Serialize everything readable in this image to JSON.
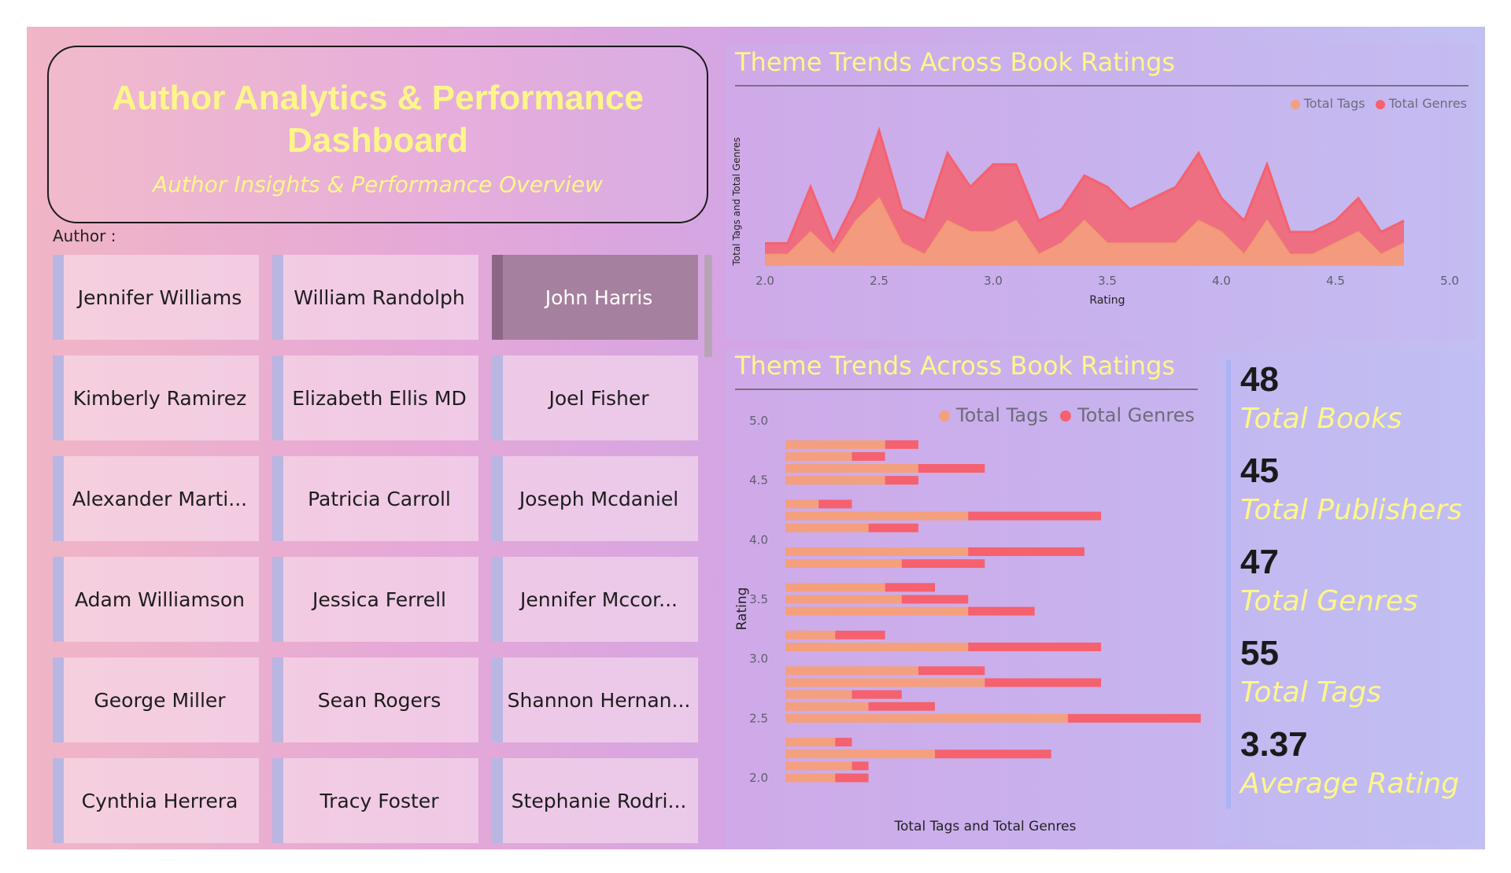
{
  "header": {
    "title": "Author Analytics & Performance Dashboard",
    "subtitle": "Author Insights & Performance Overview"
  },
  "slicer": {
    "label": "Author :",
    "authors": [
      "Jennifer Williams",
      "William Randolph",
      "John Harris",
      "Kimberly Ramirez",
      "Elizabeth Ellis MD",
      "Joel Fisher",
      "Alexander Marti...",
      "Patricia Carroll",
      "Joseph Mcdaniel",
      "Adam Williamson",
      "Jessica Ferrell",
      "Jennifer Mccor...",
      "George Miller",
      "Sean Rogers",
      "Shannon Hernan...",
      "Cynthia Herrera",
      "Tracy Foster",
      "Stephanie Rodri..."
    ],
    "selected": "John Harris"
  },
  "area_panel": {
    "title": "Theme Trends Across Book Ratings",
    "legend": [
      "Total Tags",
      "Total Genres"
    ]
  },
  "bar_panel": {
    "title": "Theme Trends Across Book Ratings",
    "legend": [
      "Total Tags",
      "Total Genres"
    ]
  },
  "colors": {
    "tags": "#f4a07e",
    "genres": "#f5616e",
    "title_yellow": "#fff68a"
  },
  "kpis": [
    {
      "value": "48",
      "label": "Total Books"
    },
    {
      "value": "45",
      "label": "Total Publishers"
    },
    {
      "value": "47",
      "label": "Total Genres"
    },
    {
      "value": "55",
      "label": "Total Tags"
    },
    {
      "value": "3.37",
      "label": "Average Rating"
    }
  ],
  "chart_data": [
    {
      "type": "area",
      "title": "Theme Trends Across Book Ratings",
      "xlabel": "Rating",
      "ylabel": "Total Tags and Total Genres",
      "xlim": [
        2.0,
        5.0
      ],
      "xticks": [
        "2.0",
        "2.5",
        "3.0",
        "3.5",
        "4.0",
        "4.5",
        "5.0"
      ],
      "legend_position": "top-right",
      "stacked": true,
      "x": [
        2.0,
        2.1,
        2.2,
        2.3,
        2.4,
        2.5,
        2.6,
        2.7,
        2.8,
        2.9,
        3.0,
        3.1,
        3.2,
        3.3,
        3.4,
        3.5,
        3.6,
        3.7,
        3.8,
        3.9,
        4.0,
        4.1,
        4.2,
        4.3,
        4.4,
        4.5,
        4.6,
        4.7,
        4.8
      ],
      "series": [
        {
          "name": "Total Tags",
          "values": [
            1,
            1,
            3,
            1,
            4,
            6,
            2,
            1,
            4,
            3,
            3,
            4,
            1,
            2,
            4,
            2,
            2,
            2,
            2,
            4,
            3,
            1,
            4,
            1,
            1,
            2,
            3,
            1,
            2
          ]
        },
        {
          "name": "Total Genres",
          "values": [
            1,
            1,
            4,
            1,
            2,
            6,
            3,
            3,
            6,
            4,
            6,
            5,
            3,
            3,
            4,
            5,
            3,
            4,
            5,
            6,
            3,
            3,
            5,
            2,
            2,
            2,
            3,
            2,
            2
          ]
        }
      ]
    },
    {
      "type": "bar",
      "orientation": "horizontal",
      "stacked": true,
      "title": "Theme Trends Across Book Ratings",
      "xlabel": "Total Tags and Total Genres",
      "ylabel": "Rating",
      "ylim": [
        2.0,
        5.0
      ],
      "yticks": [
        "2.0",
        "2.5",
        "3.0",
        "3.5",
        "4.0",
        "4.5",
        "5.0"
      ],
      "legend_position": "top-right",
      "categories": [
        4.8,
        4.7,
        4.6,
        4.5,
        4.3,
        4.2,
        4.1,
        3.9,
        3.8,
        3.6,
        3.5,
        3.4,
        3.2,
        3.1,
        2.9,
        2.8,
        2.7,
        2.6,
        2.5,
        2.3,
        2.2,
        2.1,
        2.0
      ],
      "series": [
        {
          "name": "Total Tags",
          "values": [
            6,
            4,
            8,
            6,
            2,
            11,
            5,
            11,
            7,
            6,
            7,
            11,
            3,
            11,
            8,
            12,
            4,
            5,
            17,
            3,
            9,
            4,
            3
          ]
        },
        {
          "name": "Total Genres",
          "values": [
            2,
            2,
            4,
            2,
            2,
            8,
            3,
            7,
            5,
            3,
            4,
            4,
            3,
            8,
            4,
            7,
            3,
            4,
            8,
            1,
            7,
            1,
            2
          ]
        }
      ]
    }
  ]
}
